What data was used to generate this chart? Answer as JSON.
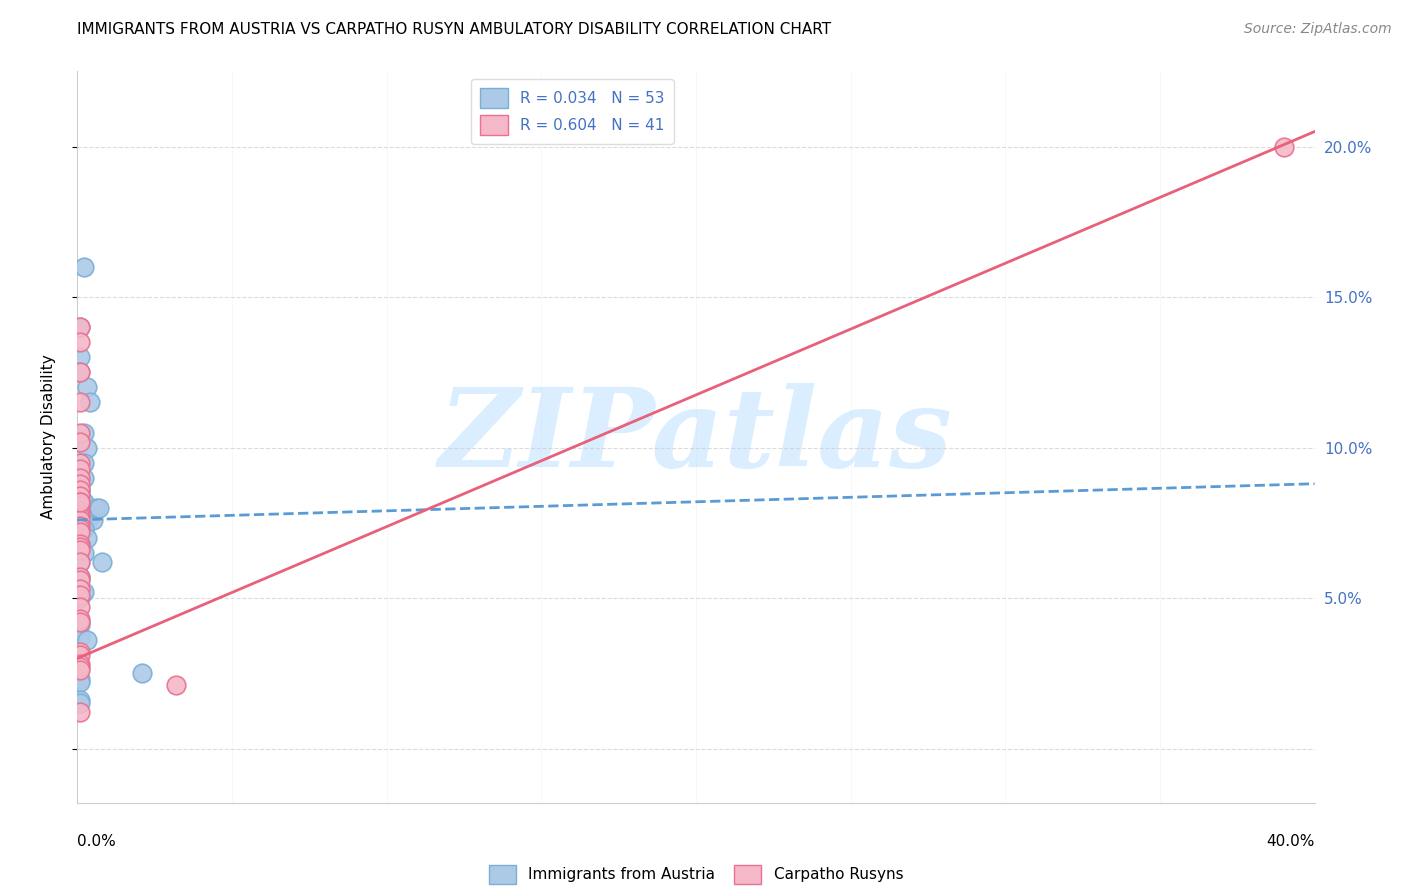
{
  "title": "IMMIGRANTS FROM AUSTRIA VS CARPATHO RUSYN AMBULATORY DISABILITY CORRELATION CHART",
  "source": "Source: ZipAtlas.com",
  "ylabel": "Ambulatory Disability",
  "x_lim": [
    0.0,
    0.4
  ],
  "y_lim": [
    -0.018,
    0.225
  ],
  "y_ticks": [
    0.0,
    0.05,
    0.1,
    0.15,
    0.2
  ],
  "austria_color": "#adc9e8",
  "austria_edge": "#7aafd4",
  "carpatho_color": "#f5b8c8",
  "carpatho_edge": "#e87090",
  "watermark_text": "ZIPatlas",
  "watermark_color": "#daeeff",
  "austria_x": [
    0.001,
    0.002,
    0.001,
    0.001,
    0.003,
    0.004,
    0.002,
    0.003,
    0.002,
    0.001,
    0.001,
    0.001,
    0.002,
    0.001,
    0.001,
    0.001,
    0.001,
    0.002,
    0.001,
    0.001,
    0.001,
    0.001,
    0.001,
    0.003,
    0.002,
    0.004,
    0.003,
    0.005,
    0.006,
    0.007,
    0.002,
    0.001,
    0.001,
    0.003,
    0.001,
    0.001,
    0.001,
    0.002,
    0.001,
    0.008,
    0.001,
    0.001,
    0.002,
    0.001,
    0.001,
    0.001,
    0.001,
    0.003,
    0.001,
    0.001,
    0.001,
    0.001,
    0.021
  ],
  "austria_y": [
    0.14,
    0.16,
    0.13,
    0.125,
    0.12,
    0.115,
    0.105,
    0.1,
    0.095,
    0.092,
    0.09,
    0.09,
    0.09,
    0.087,
    0.086,
    0.085,
    0.083,
    0.082,
    0.082,
    0.081,
    0.08,
    0.079,
    0.078,
    0.078,
    0.077,
    0.077,
    0.076,
    0.076,
    0.08,
    0.08,
    0.073,
    0.072,
    0.071,
    0.07,
    0.068,
    0.067,
    0.066,
    0.065,
    0.062,
    0.062,
    0.057,
    0.056,
    0.052,
    0.05,
    0.042,
    0.041,
    0.037,
    0.036,
    0.023,
    0.022,
    0.016,
    0.015,
    0.025
  ],
  "carpatho_x": [
    0.001,
    0.001,
    0.001,
    0.001,
    0.001,
    0.001,
    0.001,
    0.001,
    0.001,
    0.001,
    0.001,
    0.001,
    0.001,
    0.001,
    0.001,
    0.001,
    0.001,
    0.001,
    0.001,
    0.001,
    0.001,
    0.001,
    0.001,
    0.001,
    0.001,
    0.001,
    0.001,
    0.001,
    0.001,
    0.001,
    0.001,
    0.001,
    0.001,
    0.001,
    0.001,
    0.001,
    0.001,
    0.001,
    0.032,
    0.001,
    0.39
  ],
  "carpatho_y": [
    0.14,
    0.135,
    0.125,
    0.115,
    0.105,
    0.102,
    0.095,
    0.093,
    0.09,
    0.088,
    0.086,
    0.084,
    0.082,
    0.081,
    0.079,
    0.078,
    0.077,
    0.076,
    0.074,
    0.073,
    0.072,
    0.082,
    0.068,
    0.067,
    0.066,
    0.062,
    0.057,
    0.056,
    0.053,
    0.051,
    0.047,
    0.043,
    0.042,
    0.032,
    0.031,
    0.028,
    0.027,
    0.026,
    0.021,
    0.012,
    0.2
  ],
  "austria_trend_x": [
    0.0,
    0.4
  ],
  "austria_trend_y": [
    0.076,
    0.088
  ],
  "carpatho_trend_x": [
    0.0,
    0.4
  ],
  "carpatho_trend_y": [
    0.03,
    0.205
  ],
  "trend_austria_color": "#5b9bd5",
  "trend_carpatho_color": "#e8607a",
  "grid_color": "#cccccc",
  "right_tick_color": "#4472c4",
  "legend_austria_label": "R = 0.034   N = 53",
  "legend_carpatho_label": "R = 0.604   N = 41",
  "bottom_legend_austria": "Immigrants from Austria",
  "bottom_legend_carpatho": "Carpatho Rusyns"
}
